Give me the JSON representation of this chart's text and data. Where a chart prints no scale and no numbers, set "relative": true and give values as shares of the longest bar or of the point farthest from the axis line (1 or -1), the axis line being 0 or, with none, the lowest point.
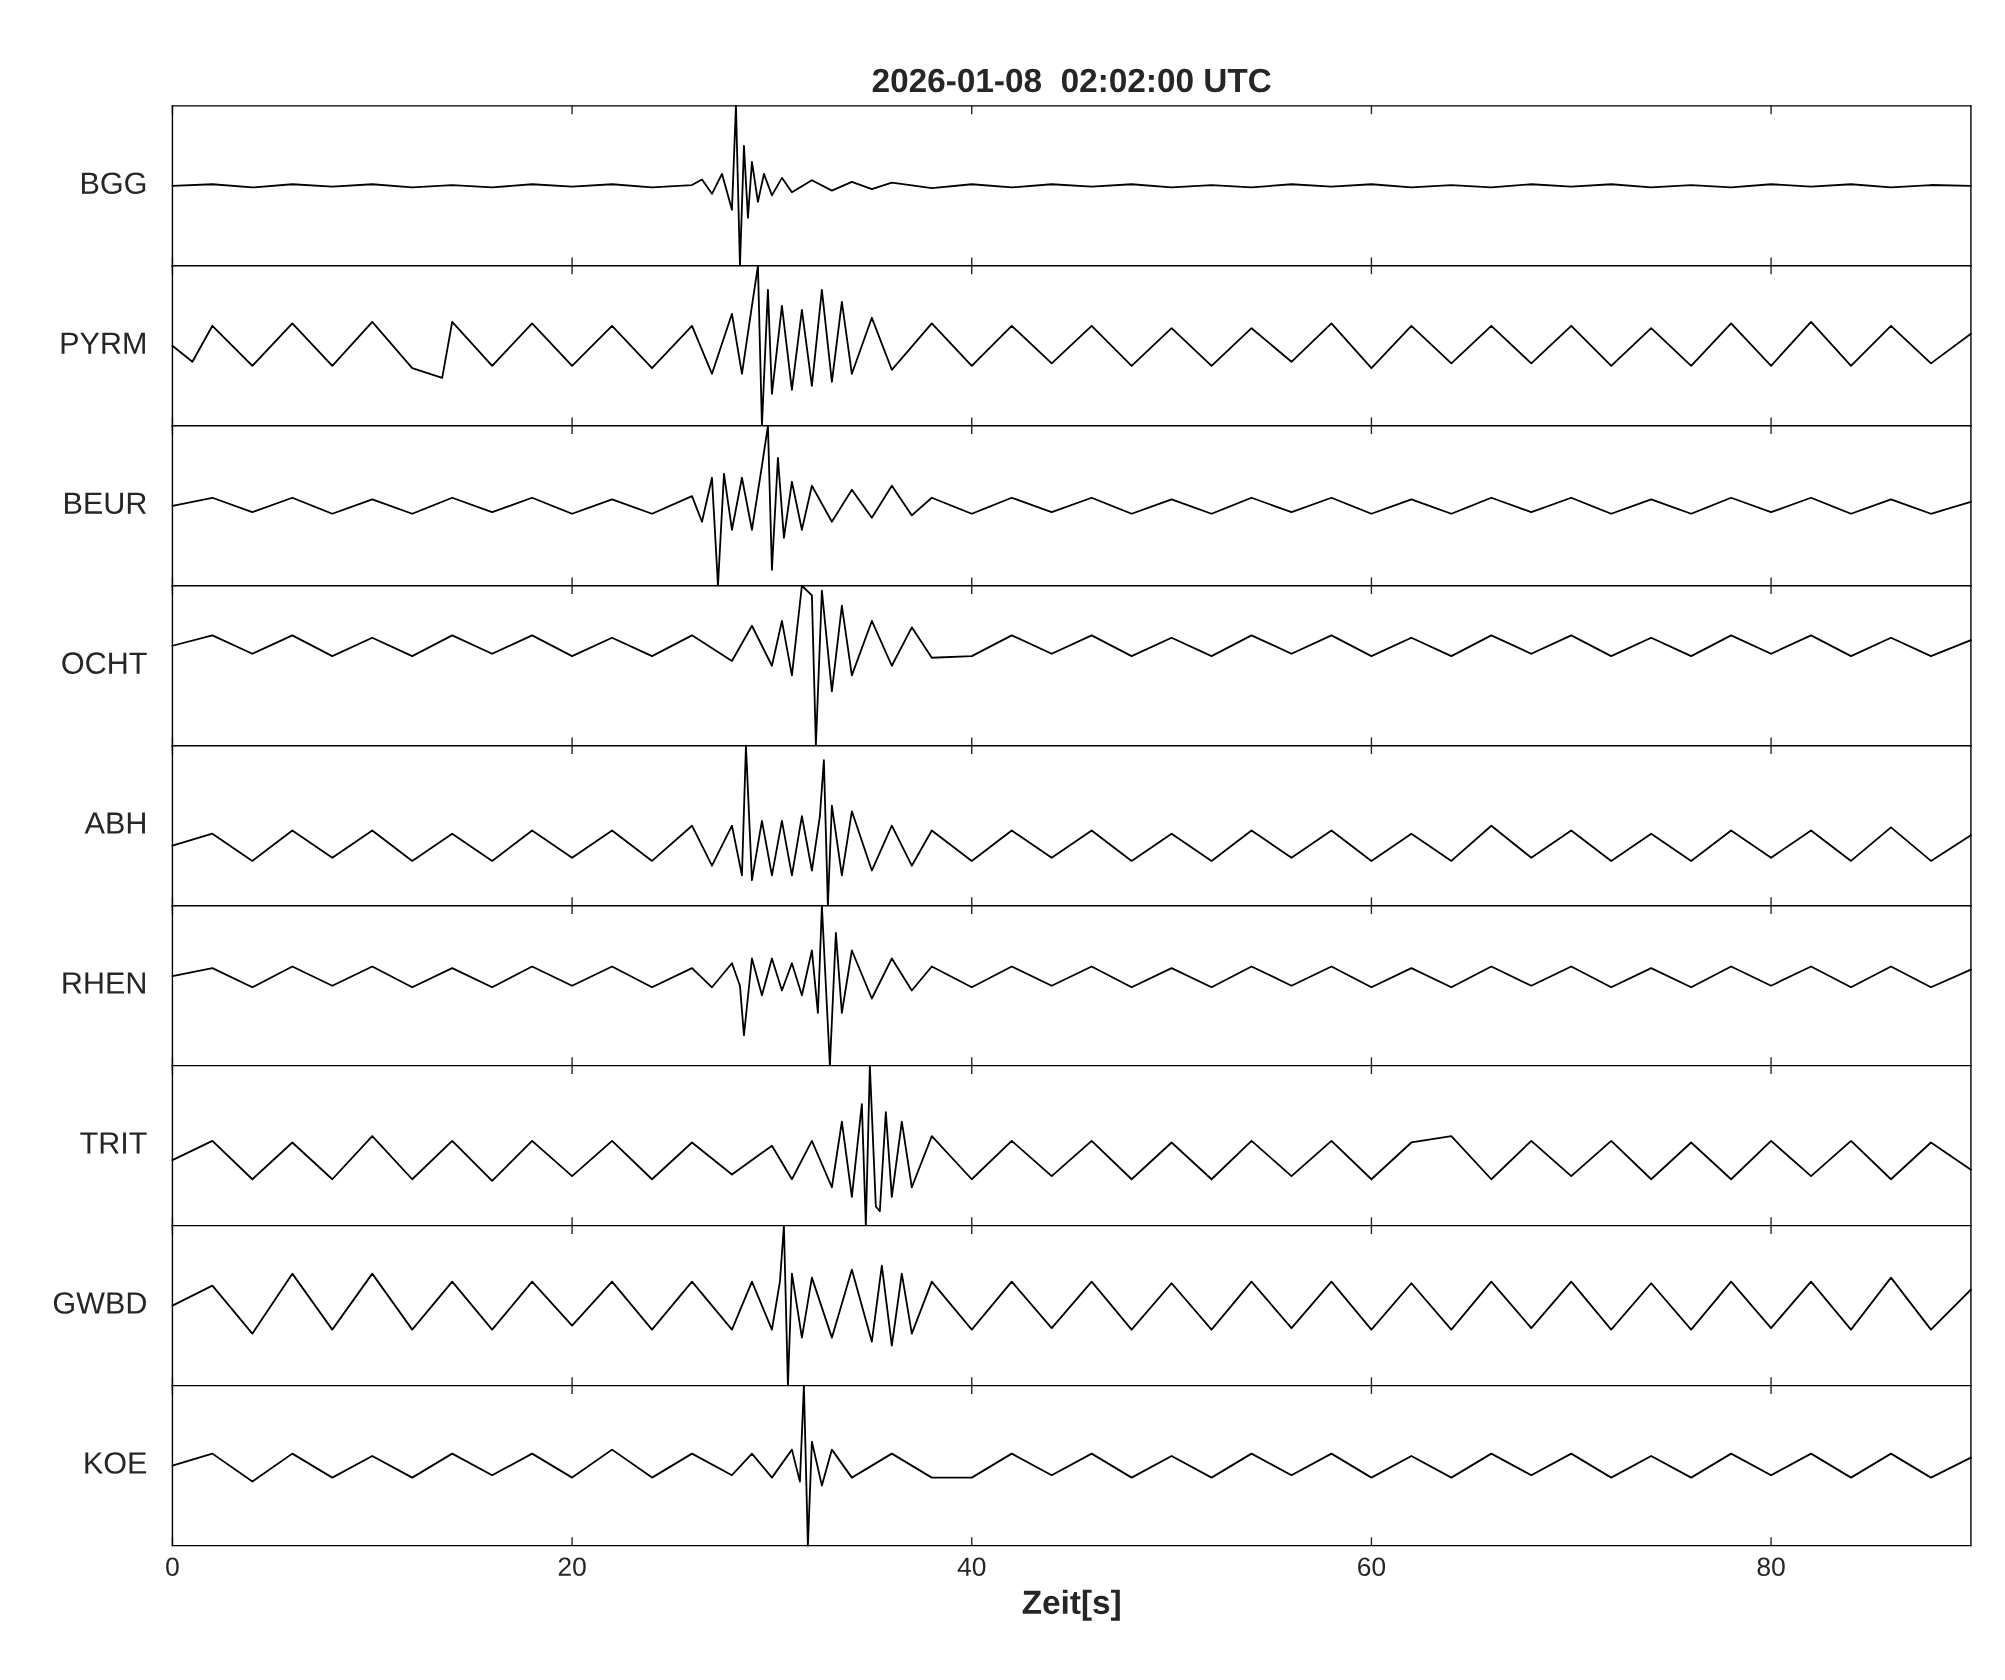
{
  "chart_data": [
    {
      "type": "line",
      "title": "2026-01-08  02:02:00 UTC",
      "ylabel": "BGG",
      "relative": true,
      "xlim": [
        0,
        90
      ],
      "xticks": [
        0,
        20,
        40,
        60,
        80
      ],
      "tick_labels": false,
      "x": [
        0,
        2,
        4,
        6,
        8,
        10,
        12,
        14,
        16,
        18,
        20,
        22,
        24,
        26,
        26.5,
        27,
        27.5,
        28,
        28.2,
        28.4,
        28.6,
        28.8,
        29,
        29.3,
        29.6,
        30,
        30.5,
        31,
        32,
        33,
        34,
        35,
        36,
        38,
        40,
        42,
        44,
        46,
        48,
        50,
        52,
        54,
        56,
        58,
        60,
        62,
        64,
        66,
        68,
        70,
        72,
        74,
        76,
        78,
        80,
        82,
        84,
        86,
        88,
        90
      ],
      "series": [
        {
          "color": "#000000",
          "values": [
            0.5,
            0.51,
            0.49,
            0.51,
            0.495,
            0.51,
            0.49,
            0.505,
            0.49,
            0.51,
            0.495,
            0.51,
            0.49,
            0.505,
            0.54,
            0.45,
            0.575,
            0.35,
            1,
            0,
            0.75,
            0.3,
            0.65,
            0.4,
            0.575,
            0.44,
            0.55,
            0.46,
            0.535,
            0.47,
            0.525,
            0.48,
            0.52,
            0.485,
            0.51,
            0.49,
            0.51,
            0.495,
            0.51,
            0.49,
            0.505,
            0.49,
            0.51,
            0.495,
            0.51,
            0.49,
            0.505,
            0.49,
            0.51,
            0.495,
            0.51,
            0.49,
            0.505,
            0.49,
            0.51,
            0.495,
            0.51,
            0.49,
            0.505,
            0.5
          ]
        }
      ]
    },
    {
      "type": "line",
      "ylabel": "PYRM",
      "relative": true,
      "xlim": [
        0,
        90
      ],
      "xticks": [
        0,
        20,
        40,
        60,
        80
      ],
      "tick_labels": false,
      "x": [
        0,
        1,
        2,
        4,
        6,
        8,
        10,
        12,
        13.5,
        14,
        16,
        18,
        20,
        22,
        24,
        26,
        27,
        28,
        28.5,
        29,
        29.3,
        29.5,
        29.8,
        30,
        30.5,
        31,
        31.5,
        32,
        32.5,
        33,
        33.5,
        34,
        35,
        36,
        38,
        40,
        42,
        44,
        46,
        48,
        50,
        52,
        54,
        56,
        58,
        60,
        62,
        64,
        66,
        68,
        70,
        72,
        74,
        76,
        78,
        80,
        82,
        84,
        86,
        88,
        90
      ],
      "series": [
        {
          "color": "#000000",
          "values": [
            0.5,
            0.4,
            0.625,
            0.375,
            0.64,
            0.375,
            0.65,
            0.36,
            0.3,
            0.65,
            0.375,
            0.64,
            0.375,
            0.625,
            0.36,
            0.625,
            0.325,
            0.7,
            0.325,
            0.75,
            1,
            0,
            0.85,
            0.2,
            0.75,
            0.225,
            0.725,
            0.25,
            0.85,
            0.275,
            0.775,
            0.325,
            0.675,
            0.35,
            0.64,
            0.375,
            0.625,
            0.39,
            0.625,
            0.375,
            0.61,
            0.375,
            0.61,
            0.4,
            0.64,
            0.36,
            0.625,
            0.39,
            0.625,
            0.39,
            0.625,
            0.375,
            0.61,
            0.375,
            0.64,
            0.375,
            0.65,
            0.375,
            0.625,
            0.39,
            0.575
          ]
        }
      ]
    },
    {
      "type": "line",
      "ylabel": "BEUR",
      "relative": true,
      "xlim": [
        0,
        90
      ],
      "xticks": [
        0,
        20,
        40,
        60,
        80
      ],
      "tick_labels": false,
      "x": [
        0,
        2,
        4,
        6,
        8,
        10,
        12,
        14,
        16,
        18,
        20,
        22,
        24,
        26,
        26.5,
        27,
        27.3,
        27.6,
        28,
        28.5,
        29,
        29.5,
        29.8,
        30,
        30.3,
        30.6,
        31,
        31.5,
        32,
        33,
        34,
        35,
        36,
        37,
        38,
        40,
        42,
        44,
        46,
        48,
        50,
        52,
        54,
        56,
        58,
        60,
        62,
        64,
        66,
        68,
        70,
        72,
        74,
        76,
        78,
        80,
        82,
        84,
        86,
        88,
        90
      ],
      "series": [
        {
          "color": "#000000",
          "values": [
            0.5,
            0.55,
            0.46,
            0.55,
            0.45,
            0.54,
            0.45,
            0.55,
            0.46,
            0.55,
            0.45,
            0.54,
            0.45,
            0.56,
            0.4,
            0.675,
            0,
            0.7,
            0.35,
            0.675,
            0.35,
            0.75,
            1,
            0.1,
            0.8,
            0.3,
            0.65,
            0.35,
            0.625,
            0.4,
            0.6,
            0.425,
            0.625,
            0.44,
            0.55,
            0.45,
            0.55,
            0.46,
            0.55,
            0.45,
            0.54,
            0.45,
            0.55,
            0.46,
            0.55,
            0.45,
            0.54,
            0.45,
            0.55,
            0.46,
            0.55,
            0.45,
            0.54,
            0.45,
            0.55,
            0.46,
            0.55,
            0.45,
            0.54,
            0.45,
            0.525
          ]
        }
      ]
    },
    {
      "type": "line",
      "ylabel": "OCHT",
      "relative": true,
      "xlim": [
        0,
        90
      ],
      "xticks": [
        0,
        20,
        40,
        60,
        80
      ],
      "tick_labels": false,
      "x": [
        0,
        2,
        4,
        6,
        8,
        10,
        12,
        14,
        16,
        18,
        20,
        22,
        24,
        26,
        28,
        29,
        30,
        30.5,
        31,
        31.5,
        32,
        32.2,
        32.5,
        33,
        33.5,
        34,
        35,
        36,
        37,
        38,
        40,
        42,
        44,
        46,
        48,
        50,
        52,
        54,
        56,
        58,
        60,
        62,
        64,
        66,
        68,
        70,
        72,
        74,
        76,
        78,
        80,
        82,
        84,
        86,
        88,
        90
      ],
      "series": [
        {
          "color": "#000000",
          "values": [
            0.625,
            0.69,
            0.575,
            0.69,
            0.56,
            0.675,
            0.56,
            0.69,
            0.575,
            0.69,
            0.56,
            0.675,
            0.56,
            0.69,
            0.53,
            0.75,
            0.5,
            0.78,
            0.44,
            1,
            0.94,
            0,
            0.97,
            0.34,
            0.875,
            0.44,
            0.78,
            0.5,
            0.74,
            0.55,
            0.56,
            0.69,
            0.575,
            0.69,
            0.56,
            0.675,
            0.56,
            0.69,
            0.575,
            0.69,
            0.56,
            0.675,
            0.56,
            0.69,
            0.575,
            0.69,
            0.56,
            0.675,
            0.56,
            0.69,
            0.575,
            0.69,
            0.56,
            0.675,
            0.56,
            0.66
          ]
        }
      ]
    },
    {
      "type": "line",
      "ylabel": "ABH",
      "relative": true,
      "xlim": [
        0,
        90
      ],
      "xticks": [
        0,
        20,
        40,
        60,
        80
      ],
      "tick_labels": false,
      "x": [
        0,
        2,
        4,
        6,
        8,
        10,
        12,
        14,
        16,
        18,
        20,
        22,
        24,
        26,
        27,
        28,
        28.5,
        28.7,
        29,
        29.5,
        30,
        30.5,
        31,
        31.5,
        32,
        32.4,
        32.6,
        32.8,
        33,
        33.5,
        34,
        35,
        36,
        37,
        38,
        40,
        42,
        44,
        46,
        48,
        50,
        52,
        54,
        56,
        58,
        60,
        62,
        64,
        66,
        68,
        70,
        72,
        74,
        76,
        78,
        80,
        82,
        84,
        86,
        88,
        90
      ],
      "series": [
        {
          "color": "#000000",
          "values": [
            0.375,
            0.45,
            0.28,
            0.47,
            0.3,
            0.47,
            0.28,
            0.45,
            0.28,
            0.47,
            0.3,
            0.47,
            0.28,
            0.5,
            0.25,
            0.5,
            0.19,
            1,
            0.16,
            0.53,
            0.19,
            0.53,
            0.19,
            0.56,
            0.22,
            0.56,
            0.91,
            0,
            0.625,
            0.19,
            0.59,
            0.22,
            0.5,
            0.25,
            0.47,
            0.28,
            0.47,
            0.3,
            0.47,
            0.28,
            0.45,
            0.28,
            0.47,
            0.3,
            0.47,
            0.28,
            0.45,
            0.28,
            0.5,
            0.3,
            0.47,
            0.28,
            0.45,
            0.28,
            0.47,
            0.3,
            0.47,
            0.28,
            0.49,
            0.28,
            0.44
          ]
        }
      ]
    },
    {
      "type": "line",
      "ylabel": "RHEN",
      "relative": true,
      "xlim": [
        0,
        90
      ],
      "xticks": [
        0,
        20,
        40,
        60,
        80
      ],
      "tick_labels": false,
      "x": [
        0,
        2,
        4,
        6,
        8,
        10,
        12,
        14,
        16,
        18,
        20,
        22,
        24,
        26,
        27,
        28,
        28.4,
        28.6,
        29,
        29.5,
        30,
        30.5,
        31,
        31.5,
        32,
        32.3,
        32.5,
        32.9,
        33.2,
        33.5,
        34,
        35,
        36,
        37,
        38,
        40,
        42,
        44,
        46,
        48,
        50,
        52,
        54,
        56,
        58,
        60,
        62,
        64,
        66,
        68,
        70,
        72,
        74,
        76,
        78,
        80,
        82,
        84,
        86,
        88,
        90
      ],
      "series": [
        {
          "color": "#000000",
          "values": [
            0.56,
            0.61,
            0.49,
            0.62,
            0.5,
            0.62,
            0.49,
            0.61,
            0.49,
            0.62,
            0.5,
            0.62,
            0.49,
            0.61,
            0.49,
            0.64,
            0.5,
            0.19,
            0.67,
            0.44,
            0.67,
            0.47,
            0.64,
            0.44,
            0.72,
            0.33,
            1,
            0,
            0.83,
            0.33,
            0.72,
            0.42,
            0.67,
            0.47,
            0.62,
            0.49,
            0.62,
            0.5,
            0.62,
            0.49,
            0.61,
            0.49,
            0.62,
            0.5,
            0.62,
            0.49,
            0.61,
            0.49,
            0.62,
            0.5,
            0.62,
            0.49,
            0.61,
            0.49,
            0.62,
            0.5,
            0.62,
            0.49,
            0.62,
            0.49,
            0.6
          ]
        }
      ]
    },
    {
      "type": "line",
      "ylabel": "TRIT",
      "relative": true,
      "xlim": [
        0,
        90
      ],
      "xticks": [
        0,
        20,
        40,
        60,
        80
      ],
      "tick_labels": false,
      "x": [
        0,
        2,
        4,
        6,
        8,
        10,
        12,
        14,
        16,
        18,
        20,
        22,
        24,
        26,
        28,
        30,
        31,
        32,
        33,
        33.5,
        34,
        34.5,
        34.7,
        34.9,
        35.2,
        35.4,
        35.7,
        36,
        36.5,
        37,
        38,
        40,
        42,
        44,
        46,
        48,
        50,
        52,
        54,
        56,
        58,
        60,
        62,
        64,
        66,
        68,
        70,
        72,
        74,
        76,
        78,
        80,
        82,
        84,
        86,
        88,
        90
      ],
      "series": [
        {
          "color": "#000000",
          "values": [
            0.41,
            0.53,
            0.29,
            0.52,
            0.29,
            0.56,
            0.29,
            0.53,
            0.28,
            0.53,
            0.31,
            0.53,
            0.29,
            0.52,
            0.32,
            0.5,
            0.29,
            0.53,
            0.24,
            0.65,
            0.18,
            0.76,
            0,
            1,
            0.12,
            0.09,
            0.71,
            0.18,
            0.65,
            0.24,
            0.56,
            0.29,
            0.53,
            0.31,
            0.53,
            0.29,
            0.52,
            0.29,
            0.53,
            0.31,
            0.53,
            0.29,
            0.52,
            0.56,
            0.29,
            0.53,
            0.31,
            0.53,
            0.29,
            0.52,
            0.29,
            0.53,
            0.31,
            0.53,
            0.29,
            0.52,
            0.35
          ]
        }
      ]
    },
    {
      "type": "line",
      "ylabel": "GWBD",
      "relative": true,
      "xlim": [
        0,
        90
      ],
      "xticks": [
        0,
        20,
        40,
        60,
        80
      ],
      "tick_labels": false,
      "x": [
        0,
        2,
        4,
        6,
        8,
        10,
        12,
        14,
        16,
        18,
        20,
        22,
        24,
        26,
        28,
        29,
        30,
        30.4,
        30.6,
        30.8,
        31,
        31.5,
        32,
        33,
        34,
        35,
        35.5,
        36,
        36.5,
        37,
        38,
        40,
        42,
        44,
        46,
        48,
        50,
        52,
        54,
        56,
        58,
        60,
        62,
        64,
        66,
        68,
        70,
        72,
        74,
        76,
        78,
        80,
        82,
        84,
        86,
        88,
        90
      ],
      "series": [
        {
          "color": "#000000",
          "values": [
            0.5,
            0.625,
            0.325,
            0.7,
            0.35,
            0.7,
            0.35,
            0.65,
            0.35,
            0.65,
            0.375,
            0.65,
            0.35,
            0.65,
            0.35,
            0.65,
            0.35,
            0.65,
            1,
            0,
            0.7,
            0.3,
            0.675,
            0.3,
            0.725,
            0.275,
            0.75,
            0.25,
            0.7,
            0.325,
            0.65,
            0.35,
            0.65,
            0.36,
            0.65,
            0.35,
            0.64,
            0.35,
            0.65,
            0.36,
            0.65,
            0.35,
            0.64,
            0.35,
            0.65,
            0.36,
            0.65,
            0.35,
            0.64,
            0.35,
            0.65,
            0.36,
            0.65,
            0.35,
            0.675,
            0.35,
            0.6
          ]
        }
      ]
    },
    {
      "type": "line",
      "ylabel": "KOE",
      "xlabel": "Zeit[s]",
      "relative": true,
      "xlim": [
        0,
        90
      ],
      "xticks": [
        0,
        20,
        40,
        60,
        80
      ],
      "tick_labels": "x",
      "x": [
        0,
        2,
        4,
        6,
        8,
        10,
        12,
        14,
        16,
        18,
        20,
        22,
        24,
        26,
        28,
        29,
        30,
        31,
        31.4,
        31.6,
        31.8,
        32,
        32.5,
        33,
        34,
        36,
        38,
        40,
        42,
        44,
        46,
        48,
        50,
        52,
        54,
        56,
        58,
        60,
        62,
        64,
        66,
        68,
        70,
        72,
        74,
        76,
        78,
        80,
        82,
        84,
        86,
        88,
        90
      ],
      "series": [
        {
          "color": "#000000",
          "values": [
            0.5,
            0.575,
            0.4,
            0.575,
            0.425,
            0.56,
            0.425,
            0.575,
            0.44,
            0.575,
            0.425,
            0.6,
            0.425,
            0.575,
            0.44,
            0.575,
            0.425,
            0.6,
            0.4,
            1,
            0,
            0.65,
            0.375,
            0.6,
            0.425,
            0.575,
            0.425,
            0.425,
            0.575,
            0.44,
            0.575,
            0.425,
            0.56,
            0.425,
            0.575,
            0.44,
            0.575,
            0.425,
            0.56,
            0.425,
            0.575,
            0.44,
            0.575,
            0.425,
            0.56,
            0.425,
            0.575,
            0.44,
            0.575,
            0.425,
            0.575,
            0.425,
            0.55
          ]
        }
      ]
    }
  ]
}
